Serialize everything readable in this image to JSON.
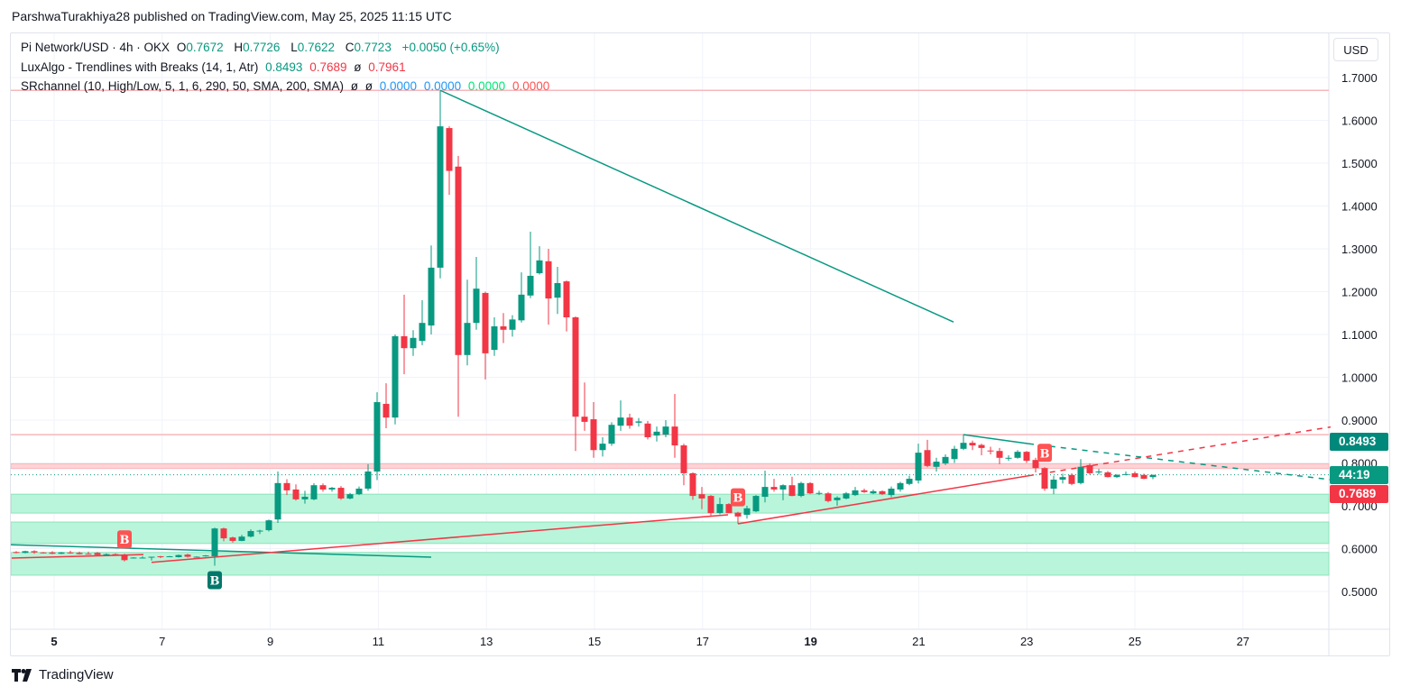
{
  "published": "ParshwaTurakhiya28 published on TradingView.com, May 25, 2025 11:15 UTC",
  "legend": {
    "symbol": "Pi Network/USD · 4h · OKX",
    "o_label": "O",
    "o": "0.7672",
    "h_label": "H",
    "h": "0.7726",
    "l_label": "L",
    "l": "0.7622",
    "c_label": "C",
    "c": "0.7723",
    "change": "+0.0050 (+0.65%)",
    "ind1": "LuxAlgo - Trendlines with Breaks (14, 1, Atr)",
    "ind1_v1": "0.8493",
    "ind1_v2": "0.7689",
    "ind1_na": "ø",
    "ind1_v3": "0.7961",
    "ind2": "SRchannel (10, High/Low, 5, 1, 6, 290, 50, SMA, 200, SMA)",
    "ind2_na1": "ø",
    "ind2_na2": "ø",
    "ind2_v1": "0.0000",
    "ind2_v2": "0.0000",
    "ind2_v3": "0.0000",
    "ind2_v4": "0.0000"
  },
  "currency_button": "USD",
  "badges": {
    "upper": "0.8493",
    "countdown": "44:19",
    "lower": "0.7689"
  },
  "footer": "TradingView",
  "colors": {
    "up": "#089981",
    "down": "#f23645",
    "band": "#b9f5da",
    "resistance": "#f7b7bb"
  },
  "chart_data": {
    "type": "candlestick",
    "timeframe": "4h",
    "ylim": [
      0.45,
      1.75
    ],
    "y_ticks": [
      "1.7000",
      "1.6000",
      "1.5000",
      "1.4000",
      "1.3000",
      "1.2000",
      "1.1000",
      "1.0000",
      "0.9000",
      "0.8000",
      "0.7000",
      "0.6000",
      "0.5000"
    ],
    "x_ticks": [
      {
        "label": "5",
        "bold": true
      },
      {
        "label": "7"
      },
      {
        "label": "9"
      },
      {
        "label": "11"
      },
      {
        "label": "13"
      },
      {
        "label": "15"
      },
      {
        "label": "17"
      },
      {
        "label": "19",
        "bold": true
      },
      {
        "label": "21"
      },
      {
        "label": "23"
      },
      {
        "label": "25"
      },
      {
        "label": "27"
      }
    ],
    "ohlc": [
      [
        0.592,
        0.594,
        0.589,
        0.591
      ],
      [
        0.59,
        0.595,
        0.589,
        0.594
      ],
      [
        0.594,
        0.596,
        0.588,
        0.591
      ],
      [
        0.591,
        0.592,
        0.589,
        0.59
      ],
      [
        0.591,
        0.594,
        0.587,
        0.588
      ],
      [
        0.588,
        0.592,
        0.587,
        0.591
      ],
      [
        0.591,
        0.595,
        0.588,
        0.589
      ],
      [
        0.59,
        0.593,
        0.586,
        0.587
      ],
      [
        0.588,
        0.593,
        0.586,
        0.587
      ],
      [
        0.59,
        0.592,
        0.583,
        0.585
      ],
      [
        0.586,
        0.589,
        0.583,
        0.587
      ],
      [
        0.587,
        0.589,
        0.585,
        0.586
      ],
      [
        0.586,
        0.588,
        0.57,
        0.573
      ],
      [
        0.578,
        0.58,
        0.577,
        0.579
      ],
      [
        0.579,
        0.582,
        0.577,
        0.579
      ],
      [
        0.58,
        0.581,
        0.572,
        0.581
      ],
      [
        0.582,
        0.583,
        0.578,
        0.58
      ],
      [
        0.582,
        0.583,
        0.58,
        0.582
      ],
      [
        0.58,
        0.586,
        0.579,
        0.585
      ],
      [
        0.586,
        0.588,
        0.579,
        0.581
      ],
      [
        0.58,
        0.582,
        0.579,
        0.581
      ],
      [
        0.582,
        0.585,
        0.581,
        0.584
      ],
      [
        0.582,
        0.649,
        0.56,
        0.647
      ],
      [
        0.647,
        0.649,
        0.617,
        0.624
      ],
      [
        0.626,
        0.628,
        0.614,
        0.618
      ],
      [
        0.618,
        0.632,
        0.617,
        0.628
      ],
      [
        0.628,
        0.645,
        0.626,
        0.641
      ],
      [
        0.641,
        0.644,
        0.634,
        0.642
      ],
      [
        0.643,
        0.668,
        0.64,
        0.666
      ],
      [
        0.668,
        0.78,
        0.66,
        0.753
      ],
      [
        0.753,
        0.762,
        0.725,
        0.736
      ],
      [
        0.738,
        0.75,
        0.712,
        0.715
      ],
      [
        0.715,
        0.735,
        0.705,
        0.721
      ],
      [
        0.715,
        0.753,
        0.713,
        0.748
      ],
      [
        0.748,
        0.752,
        0.733,
        0.738
      ],
      [
        0.738,
        0.744,
        0.733,
        0.742
      ],
      [
        0.742,
        0.746,
        0.714,
        0.717
      ],
      [
        0.717,
        0.73,
        0.715,
        0.727
      ],
      [
        0.727,
        0.745,
        0.725,
        0.74
      ],
      [
        0.74,
        0.797,
        0.735,
        0.78
      ],
      [
        0.78,
        0.965,
        0.76,
        0.942
      ],
      [
        0.938,
        0.986,
        0.881,
        0.906
      ],
      [
        0.906,
        1.1,
        0.89,
        1.096
      ],
      [
        1.096,
        1.193,
        1.007,
        1.068
      ],
      [
        1.068,
        1.11,
        1.05,
        1.092
      ],
      [
        1.085,
        1.18,
        1.075,
        1.127
      ],
      [
        1.121,
        1.308,
        1.1,
        1.256
      ],
      [
        1.256,
        1.67,
        1.231,
        1.586
      ],
      [
        1.582,
        1.586,
        1.426,
        1.482
      ],
      [
        1.492,
        1.517,
        0.908,
        1.052
      ],
      [
        1.052,
        1.228,
        1.028,
        1.127
      ],
      [
        1.127,
        1.281,
        1.111,
        1.207
      ],
      [
        1.197,
        1.2,
        0.995,
        1.056
      ],
      [
        1.064,
        1.14,
        1.05,
        1.119
      ],
      [
        1.119,
        1.15,
        1.08,
        1.111
      ],
      [
        1.111,
        1.145,
        1.095,
        1.135
      ],
      [
        1.133,
        1.245,
        1.128,
        1.193
      ],
      [
        1.191,
        1.34,
        1.185,
        1.237
      ],
      [
        1.243,
        1.306,
        1.24,
        1.273
      ],
      [
        1.271,
        1.3,
        1.123,
        1.184
      ],
      [
        1.186,
        1.258,
        1.148,
        1.22
      ],
      [
        1.224,
        1.226,
        1.107,
        1.14
      ],
      [
        1.14,
        1.142,
        0.828,
        0.908
      ],
      [
        0.908,
        0.988,
        0.875,
        0.896
      ],
      [
        0.902,
        0.942,
        0.812,
        0.83
      ],
      [
        0.83,
        0.86,
        0.815,
        0.845
      ],
      [
        0.845,
        0.895,
        0.84,
        0.889
      ],
      [
        0.887,
        0.946,
        0.875,
        0.906
      ],
      [
        0.906,
        0.915,
        0.88,
        0.887
      ],
      [
        0.894,
        0.905,
        0.885,
        0.897
      ],
      [
        0.892,
        0.898,
        0.855,
        0.86
      ],
      [
        0.864,
        0.885,
        0.85,
        0.873
      ],
      [
        0.866,
        0.9,
        0.86,
        0.885
      ],
      [
        0.885,
        0.961,
        0.812,
        0.841
      ],
      [
        0.841,
        0.845,
        0.748,
        0.776
      ],
      [
        0.776,
        0.778,
        0.714,
        0.723
      ],
      [
        0.727,
        0.744,
        0.692,
        0.717
      ],
      [
        0.723,
        0.725,
        0.677,
        0.683
      ],
      [
        0.683,
        0.719,
        0.68,
        0.704
      ],
      [
        0.704,
        0.706,
        0.683,
        0.683
      ],
      [
        0.684,
        0.686,
        0.658,
        0.675
      ],
      [
        0.679,
        0.7,
        0.67,
        0.694
      ],
      [
        0.687,
        0.725,
        0.685,
        0.723
      ],
      [
        0.721,
        0.782,
        0.708,
        0.744
      ],
      [
        0.744,
        0.763,
        0.733,
        0.738
      ],
      [
        0.738,
        0.75,
        0.713,
        0.748
      ],
      [
        0.748,
        0.768,
        0.722,
        0.723
      ],
      [
        0.723,
        0.756,
        0.72,
        0.753
      ],
      [
        0.753,
        0.755,
        0.727,
        0.729
      ],
      [
        0.729,
        0.735,
        0.725,
        0.73
      ],
      [
        0.729,
        0.732,
        0.708,
        0.711
      ],
      [
        0.713,
        0.722,
        0.7,
        0.719
      ],
      [
        0.717,
        0.732,
        0.715,
        0.729
      ],
      [
        0.725,
        0.744,
        0.723,
        0.736
      ],
      [
        0.736,
        0.74,
        0.73,
        0.732
      ],
      [
        0.729,
        0.738,
        0.727,
        0.734
      ],
      [
        0.734,
        0.736,
        0.725,
        0.727
      ],
      [
        0.725,
        0.745,
        0.72,
        0.74
      ],
      [
        0.738,
        0.756,
        0.733,
        0.753
      ],
      [
        0.751,
        0.77,
        0.748,
        0.763
      ],
      [
        0.759,
        0.845,
        0.752,
        0.824
      ],
      [
        0.83,
        0.854,
        0.79,
        0.793
      ],
      [
        0.791,
        0.812,
        0.78,
        0.803
      ],
      [
        0.799,
        0.82,
        0.795,
        0.814
      ],
      [
        0.809,
        0.84,
        0.8,
        0.833
      ],
      [
        0.833,
        0.866,
        0.83,
        0.847
      ],
      [
        0.847,
        0.852,
        0.83,
        0.841
      ],
      [
        0.842,
        0.845,
        0.818,
        0.835
      ],
      [
        0.829,
        0.838,
        0.82,
        0.828
      ],
      [
        0.828,
        0.835,
        0.797,
        0.812
      ],
      [
        0.812,
        0.818,
        0.805,
        0.812
      ],
      [
        0.812,
        0.83,
        0.81,
        0.826
      ],
      [
        0.826,
        0.828,
        0.8,
        0.805
      ],
      [
        0.807,
        0.812,
        0.778,
        0.788
      ],
      [
        0.788,
        0.79,
        0.735,
        0.74
      ],
      [
        0.74,
        0.77,
        0.727,
        0.761
      ],
      [
        0.761,
        0.775,
        0.752,
        0.767
      ],
      [
        0.772,
        0.776,
        0.748,
        0.751
      ],
      [
        0.753,
        0.809,
        0.75,
        0.791
      ],
      [
        0.795,
        0.799,
        0.773,
        0.776
      ],
      [
        0.78,
        0.786,
        0.773,
        0.78
      ],
      [
        0.778,
        0.781,
        0.766,
        0.767
      ],
      [
        0.767,
        0.774,
        0.765,
        0.772
      ],
      [
        0.774,
        0.78,
        0.771,
        0.774
      ],
      [
        0.776,
        0.78,
        0.766,
        0.767
      ],
      [
        0.772,
        0.775,
        0.762,
        0.763
      ],
      [
        0.767,
        0.773,
        0.762,
        0.772
      ]
    ],
    "last_price": 0.7723,
    "resistance_lines": [
      1.67,
      0.866
    ],
    "resistance_band": [
      0.787,
      0.798
    ],
    "support_bands": [
      [
        0.683,
        0.727
      ],
      [
        0.612,
        0.662
      ],
      [
        0.538,
        0.591
      ]
    ],
    "trendlines": [
      {
        "color": "#089981",
        "dashed": false,
        "from": [
          47,
          1.67
        ],
        "to": [
          103.9,
          1.129
        ]
      },
      {
        "color": "#089981",
        "dashed": false,
        "from": [
          -0.6,
          0.609
        ],
        "to": [
          46,
          0.58
        ]
      },
      {
        "color": "#f23645",
        "dashed": false,
        "from": [
          -0.5,
          0.578
        ],
        "to": [
          14.1,
          0.586
        ]
      },
      {
        "color": "#f23645",
        "dashed": false,
        "from": [
          15,
          0.568
        ],
        "to": [
          78.9,
          0.679
        ]
      },
      {
        "color": "#f23645",
        "dashed": false,
        "from": [
          80,
          0.658
        ],
        "to": [
          112.2,
          0.77
        ]
      },
      {
        "color": "#f23645",
        "dashed": true,
        "from": [
          112.2,
          0.77
        ],
        "to": [
          145.7,
          0.884
        ]
      },
      {
        "color": "#089981",
        "dashed": false,
        "from": [
          105,
          0.866
        ],
        "to": [
          112.2,
          0.845
        ]
      },
      {
        "color": "#089981",
        "dashed": true,
        "from": [
          112.2,
          0.845
        ],
        "to": [
          145.7,
          0.761
        ]
      }
    ],
    "break_labels": [
      {
        "text": "B",
        "index": 12,
        "type": "bearish"
      },
      {
        "text": "B",
        "index": 22,
        "type": "bullish"
      },
      {
        "text": "B",
        "index": 80,
        "type": "bearish"
      },
      {
        "text": "B",
        "index": 114,
        "type": "bearish"
      }
    ]
  }
}
